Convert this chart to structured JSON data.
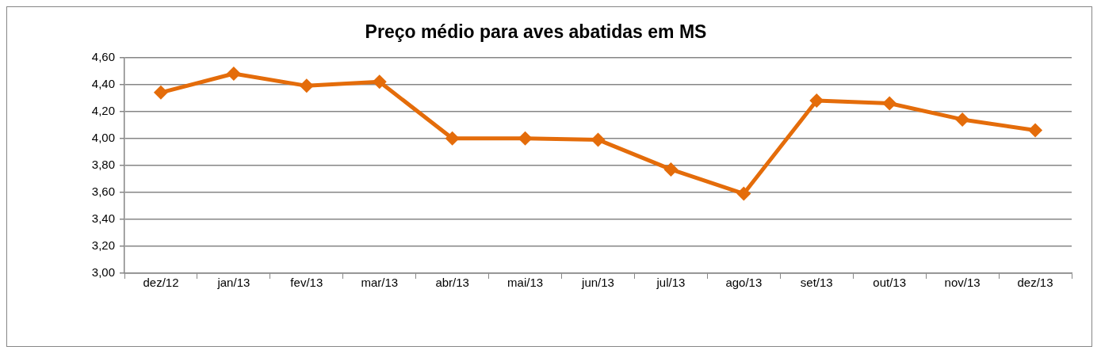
{
  "chart_data": {
    "type": "line",
    "title": "Preço médio para aves abatidas em MS",
    "categories": [
      "dez/12",
      "jan/13",
      "fev/13",
      "mar/13",
      "abr/13",
      "mai/13",
      "jun/13",
      "jul/13",
      "ago/13",
      "set/13",
      "out/13",
      "nov/13",
      "dez/13"
    ],
    "series": [
      {
        "color": "#e46c0a",
        "values": [
          4.34,
          4.48,
          4.39,
          4.42,
          4.0,
          4.0,
          3.99,
          3.77,
          3.59,
          4.28,
          4.26,
          4.14,
          4.06
        ]
      }
    ],
    "ylim": [
      3.0,
      4.6
    ],
    "yticks": [
      {
        "value": 3.0,
        "label": "3,00"
      },
      {
        "value": 3.2,
        "label": "3,20"
      },
      {
        "value": 3.4,
        "label": "3,40"
      },
      {
        "value": 3.6,
        "label": "3,60"
      },
      {
        "value": 3.8,
        "label": "3,80"
      },
      {
        "value": 4.0,
        "label": "4,00"
      },
      {
        "value": 4.2,
        "label": "4,20"
      },
      {
        "value": 4.4,
        "label": "4,40"
      },
      {
        "value": 4.6,
        "label": "4,60"
      }
    ],
    "grid": "y",
    "marker": "diamond",
    "line_style": "solid"
  }
}
